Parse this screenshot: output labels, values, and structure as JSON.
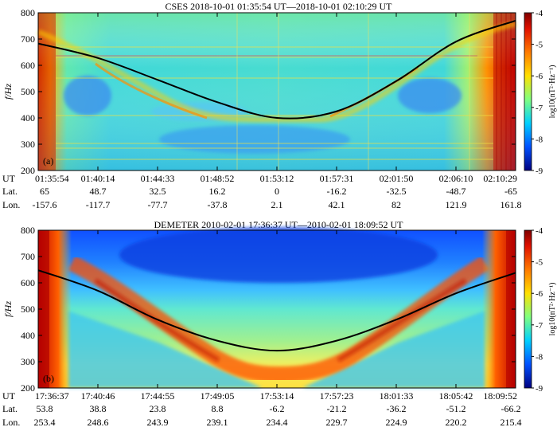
{
  "chart_data": [
    {
      "type": "heatmap",
      "title": "CSES 2018-10-01 01:35:54 UT—2018-10-01 02:10:29 UT",
      "panel_label": "(a)",
      "ylabel": "f/Hz",
      "ylim": [
        200,
        800
      ],
      "yticks": [
        200,
        300,
        400,
        500,
        600,
        700,
        800
      ],
      "colorbar": {
        "label": "log10(nT²·Hz⁻¹)",
        "range": [
          -9,
          -4
        ],
        "ticks": [
          -4,
          -5,
          -6,
          -7,
          -8,
          -9
        ]
      },
      "x_rows": [
        {
          "label": "UT",
          "values": [
            "01:35:54",
            "01:40:14",
            "01:44:33",
            "01:48:52",
            "01:53:12",
            "01:57:31",
            "02:01:50",
            "02:06:10",
            "02:10:29"
          ]
        },
        {
          "label": "Lat.",
          "values": [
            "65",
            "48.7",
            "32.5",
            "16.2",
            "0",
            "-16.2",
            "-32.5",
            "-48.7",
            "-65"
          ]
        },
        {
          "label": "Lon.",
          "values": [
            "-157.6",
            "-117.7",
            "-77.7",
            "-37.8",
            "2.1",
            "42.1",
            "82",
            "121.9",
            "161.8"
          ]
        }
      ],
      "curve": {
        "x": [
          0,
          0.125,
          0.25,
          0.375,
          0.5,
          0.625,
          0.75,
          0.875,
          1
        ],
        "y": [
          683,
          628,
          545,
          460,
          400,
          425,
          540,
          690,
          770
        ]
      }
    },
    {
      "type": "heatmap",
      "title": "DEMETER 2010-02-01 17:36:37 UT—2010-02-01 18:09:52 UT",
      "panel_label": "(b)",
      "ylabel": "f/Hz",
      "ylim": [
        200,
        800
      ],
      "yticks": [
        200,
        300,
        400,
        500,
        600,
        700,
        800
      ],
      "colorbar": {
        "label": "log10(nT²·Hz⁻¹)",
        "range": [
          -9,
          -4
        ],
        "ticks": [
          -4,
          -5,
          -6,
          -7,
          -8,
          -9
        ]
      },
      "x_rows": [
        {
          "label": "UT",
          "values": [
            "17:36:37",
            "17:40:46",
            "17:44:55",
            "17:49:05",
            "17:53:14",
            "17:57:23",
            "18:01:33",
            "18:05:42",
            "18:09:52"
          ]
        },
        {
          "label": "Lat.",
          "values": [
            "53.8",
            "38.8",
            "23.8",
            "8.8",
            "-6.2",
            "-21.2",
            "-36.2",
            "-51.2",
            "-66.2"
          ]
        },
        {
          "label": "Lon.",
          "values": [
            "253.4",
            "248.6",
            "243.9",
            "239.1",
            "234.4",
            "229.7",
            "224.9",
            "220.2",
            "215.4"
          ]
        }
      ],
      "curve": {
        "x": [
          0,
          0.125,
          0.25,
          0.375,
          0.5,
          0.625,
          0.75,
          0.875,
          1
        ],
        "y": [
          648,
          570,
          460,
          380,
          342,
          380,
          460,
          560,
          638
        ]
      }
    }
  ]
}
